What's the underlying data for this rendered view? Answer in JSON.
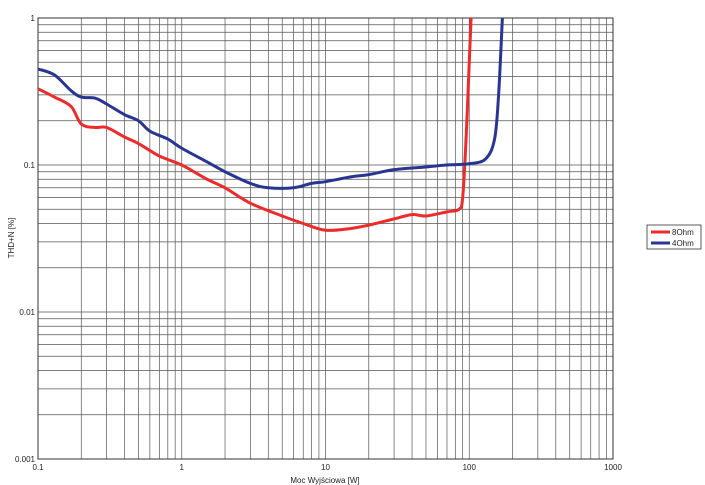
{
  "chart_data": {
    "type": "line",
    "title": "",
    "xlabel": "Moc Wyjściowa [W]",
    "ylabel": "THD+N [%]",
    "xscale": "log",
    "yscale": "log",
    "xlim": [
      0.1,
      1000
    ],
    "ylim": [
      0.001,
      1
    ],
    "grid": true,
    "x_ticks": [
      "0.1",
      "1",
      "10",
      "100",
      "1000"
    ],
    "y_ticks": [
      "0.001",
      "0.01",
      "0.1",
      "1"
    ],
    "legend_position": "right",
    "series": [
      {
        "name": "8Ohm",
        "color": "#ee2b2b",
        "x": [
          0.1,
          0.13,
          0.17,
          0.2,
          0.25,
          0.3,
          0.4,
          0.5,
          0.7,
          1,
          1.5,
          2,
          3,
          5,
          7,
          10,
          15,
          20,
          30,
          40,
          50,
          70,
          85,
          90,
          95,
          100,
          103
        ],
        "y": [
          0.33,
          0.29,
          0.25,
          0.19,
          0.18,
          0.18,
          0.155,
          0.14,
          0.115,
          0.1,
          0.08,
          0.07,
          0.055,
          0.045,
          0.04,
          0.036,
          0.037,
          0.039,
          0.043,
          0.046,
          0.045,
          0.048,
          0.05,
          0.06,
          0.15,
          0.5,
          1
        ]
      },
      {
        "name": "4Ohm",
        "color": "#283593",
        "x": [
          0.1,
          0.13,
          0.17,
          0.2,
          0.25,
          0.3,
          0.4,
          0.5,
          0.6,
          0.8,
          1,
          1.5,
          2,
          3,
          4,
          6,
          8,
          10,
          15,
          20,
          30,
          50,
          70,
          100,
          130,
          150,
          160,
          170
        ],
        "y": [
          0.45,
          0.41,
          0.32,
          0.29,
          0.285,
          0.26,
          0.22,
          0.2,
          0.17,
          0.15,
          0.13,
          0.105,
          0.09,
          0.075,
          0.07,
          0.07,
          0.075,
          0.077,
          0.083,
          0.086,
          0.093,
          0.097,
          0.1,
          0.102,
          0.11,
          0.15,
          0.3,
          1
        ]
      }
    ]
  }
}
